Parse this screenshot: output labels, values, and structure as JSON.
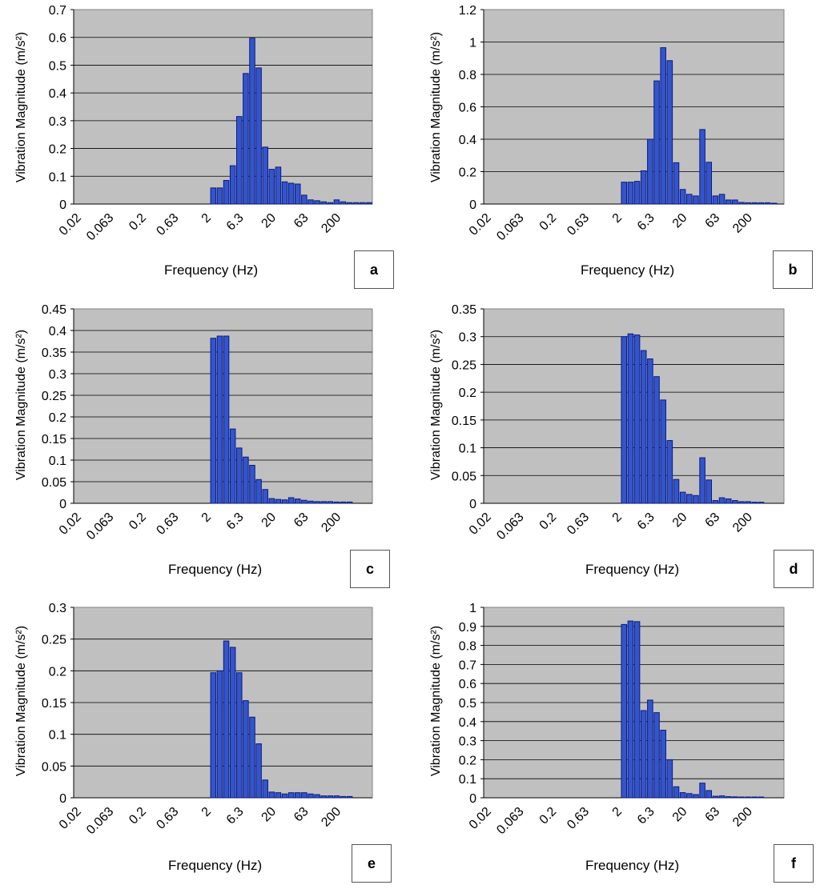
{
  "chart_data": [
    {
      "id": "a",
      "panel_label": "a",
      "type": "bar",
      "ylabel": "Vibration Magnitude (m/s²)",
      "xlabel": "Frequency (Hz)",
      "ylim": [
        0,
        0.7
      ],
      "ytick_step": 0.1,
      "yticks": [
        "0",
        "0.1",
        "0.2",
        "0.3",
        "0.4",
        "0.5",
        "0.6",
        "0.7"
      ],
      "xtick_labels": [
        "0.02",
        "0.063",
        "0.2",
        "0.63",
        "2",
        "6.3",
        "20",
        "63",
        "200"
      ],
      "bin_offset": 21,
      "values": [
        0.058,
        0.058,
        0.085,
        0.138,
        0.315,
        0.47,
        0.597,
        0.49,
        0.205,
        0.125,
        0.133,
        0.08,
        0.075,
        0.072,
        0.032,
        0.015,
        0.012,
        0.008,
        0.005,
        0.015,
        0.008,
        0.005,
        0.005,
        0.005,
        0.005
      ]
    },
    {
      "id": "b",
      "panel_label": "b",
      "type": "bar",
      "ylabel": "Vibration Magnitude (m/s²)",
      "xlabel": "Frequency (Hz)",
      "ylim": [
        0,
        1.2
      ],
      "ytick_step": 0.2,
      "yticks": [
        "0",
        "0.2",
        "0.4",
        "0.6",
        "0.8",
        "1",
        "1.2"
      ],
      "xtick_labels": [
        "0.02",
        "0.063",
        "0.2",
        "0.63",
        "2",
        "6.3",
        "20",
        "63",
        "200"
      ],
      "bin_offset": 21,
      "values": [
        0.135,
        0.135,
        0.14,
        0.205,
        0.4,
        0.76,
        0.965,
        0.885,
        0.255,
        0.09,
        0.06,
        0.05,
        0.46,
        0.258,
        0.05,
        0.06,
        0.025,
        0.025,
        0.01,
        0.008,
        0.008,
        0.008,
        0.008,
        0.005
      ]
    },
    {
      "id": "c",
      "panel_label": "c",
      "type": "bar",
      "ylabel": "Vibration Magnitude (m/s²)",
      "xlabel": "Frequency (Hz)",
      "ylim": [
        0,
        0.45
      ],
      "ytick_step": 0.05,
      "yticks": [
        "0",
        "0.05",
        "0.1",
        "0.15",
        "0.2",
        "0.25",
        "0.3",
        "0.35",
        "0.4",
        "0.45"
      ],
      "xtick_labels": [
        "0.02",
        "0.063",
        "0.2",
        "0.63",
        "2",
        "6.3",
        "20",
        "63",
        "200"
      ],
      "bin_offset": 21,
      "values": [
        0.382,
        0.387,
        0.387,
        0.172,
        0.128,
        0.107,
        0.088,
        0.055,
        0.032,
        0.011,
        0.009,
        0.008,
        0.013,
        0.01,
        0.007,
        0.005,
        0.004,
        0.004,
        0.004,
        0.003,
        0.003,
        0.003
      ]
    },
    {
      "id": "d",
      "panel_label": "d",
      "type": "bar",
      "ylabel": "Vibration Magnitude (m/s²)",
      "xlabel": "Frequency (Hz)",
      "ylim": [
        0,
        0.35
      ],
      "ytick_step": 0.05,
      "yticks": [
        "0",
        "0.05",
        "0.1",
        "0.15",
        "0.2",
        "0.25",
        "0.3",
        "0.35"
      ],
      "xtick_labels": [
        "0.02",
        "0.063",
        "0.2",
        "0.63",
        "2",
        "6.3",
        "20",
        "63",
        "200"
      ],
      "bin_offset": 21,
      "values": [
        0.3,
        0.305,
        0.303,
        0.275,
        0.26,
        0.228,
        0.186,
        0.113,
        0.043,
        0.02,
        0.016,
        0.014,
        0.082,
        0.042,
        0.005,
        0.01,
        0.008,
        0.005,
        0.003,
        0.003,
        0.002,
        0.002
      ]
    },
    {
      "id": "e",
      "panel_label": "e",
      "type": "bar",
      "ylabel": "Vibration Magnitude (m/s²)",
      "xlabel": "Frequency (Hz)",
      "ylim": [
        0,
        0.3
      ],
      "ytick_step": 0.05,
      "yticks": [
        "0",
        "0.05",
        "0.1",
        "0.15",
        "0.2",
        "0.25",
        "0.3"
      ],
      "xtick_labels": [
        "0.02",
        "0.063",
        "0.2",
        "0.63",
        "2",
        "6.3",
        "20",
        "63",
        "200"
      ],
      "bin_offset": 21,
      "values": [
        0.197,
        0.2,
        0.247,
        0.237,
        0.197,
        0.153,
        0.127,
        0.085,
        0.028,
        0.009,
        0.008,
        0.006,
        0.008,
        0.008,
        0.008,
        0.006,
        0.005,
        0.003,
        0.003,
        0.003,
        0.002,
        0.002
      ]
    },
    {
      "id": "f",
      "panel_label": "f",
      "type": "bar",
      "ylabel": "Vibration Magnitude (m/s²)",
      "xlabel": "Frequency (Hz)",
      "ylim": [
        0,
        1
      ],
      "ytick_step": 0.1,
      "yticks": [
        "0",
        "0.1",
        "0.2",
        "0.3",
        "0.4",
        "0.5",
        "0.6",
        "0.7",
        "0.8",
        "0.9",
        "1"
      ],
      "xtick_labels": [
        "0.02",
        "0.063",
        "0.2",
        "0.63",
        "2",
        "6.3",
        "20",
        "63",
        "200"
      ],
      "bin_offset": 21,
      "values": [
        0.91,
        0.928,
        0.925,
        0.458,
        0.513,
        0.447,
        0.355,
        0.2,
        0.058,
        0.027,
        0.022,
        0.017,
        0.077,
        0.038,
        0.008,
        0.01,
        0.006,
        0.005,
        0.004,
        0.004,
        0.004,
        0.004
      ]
    }
  ]
}
